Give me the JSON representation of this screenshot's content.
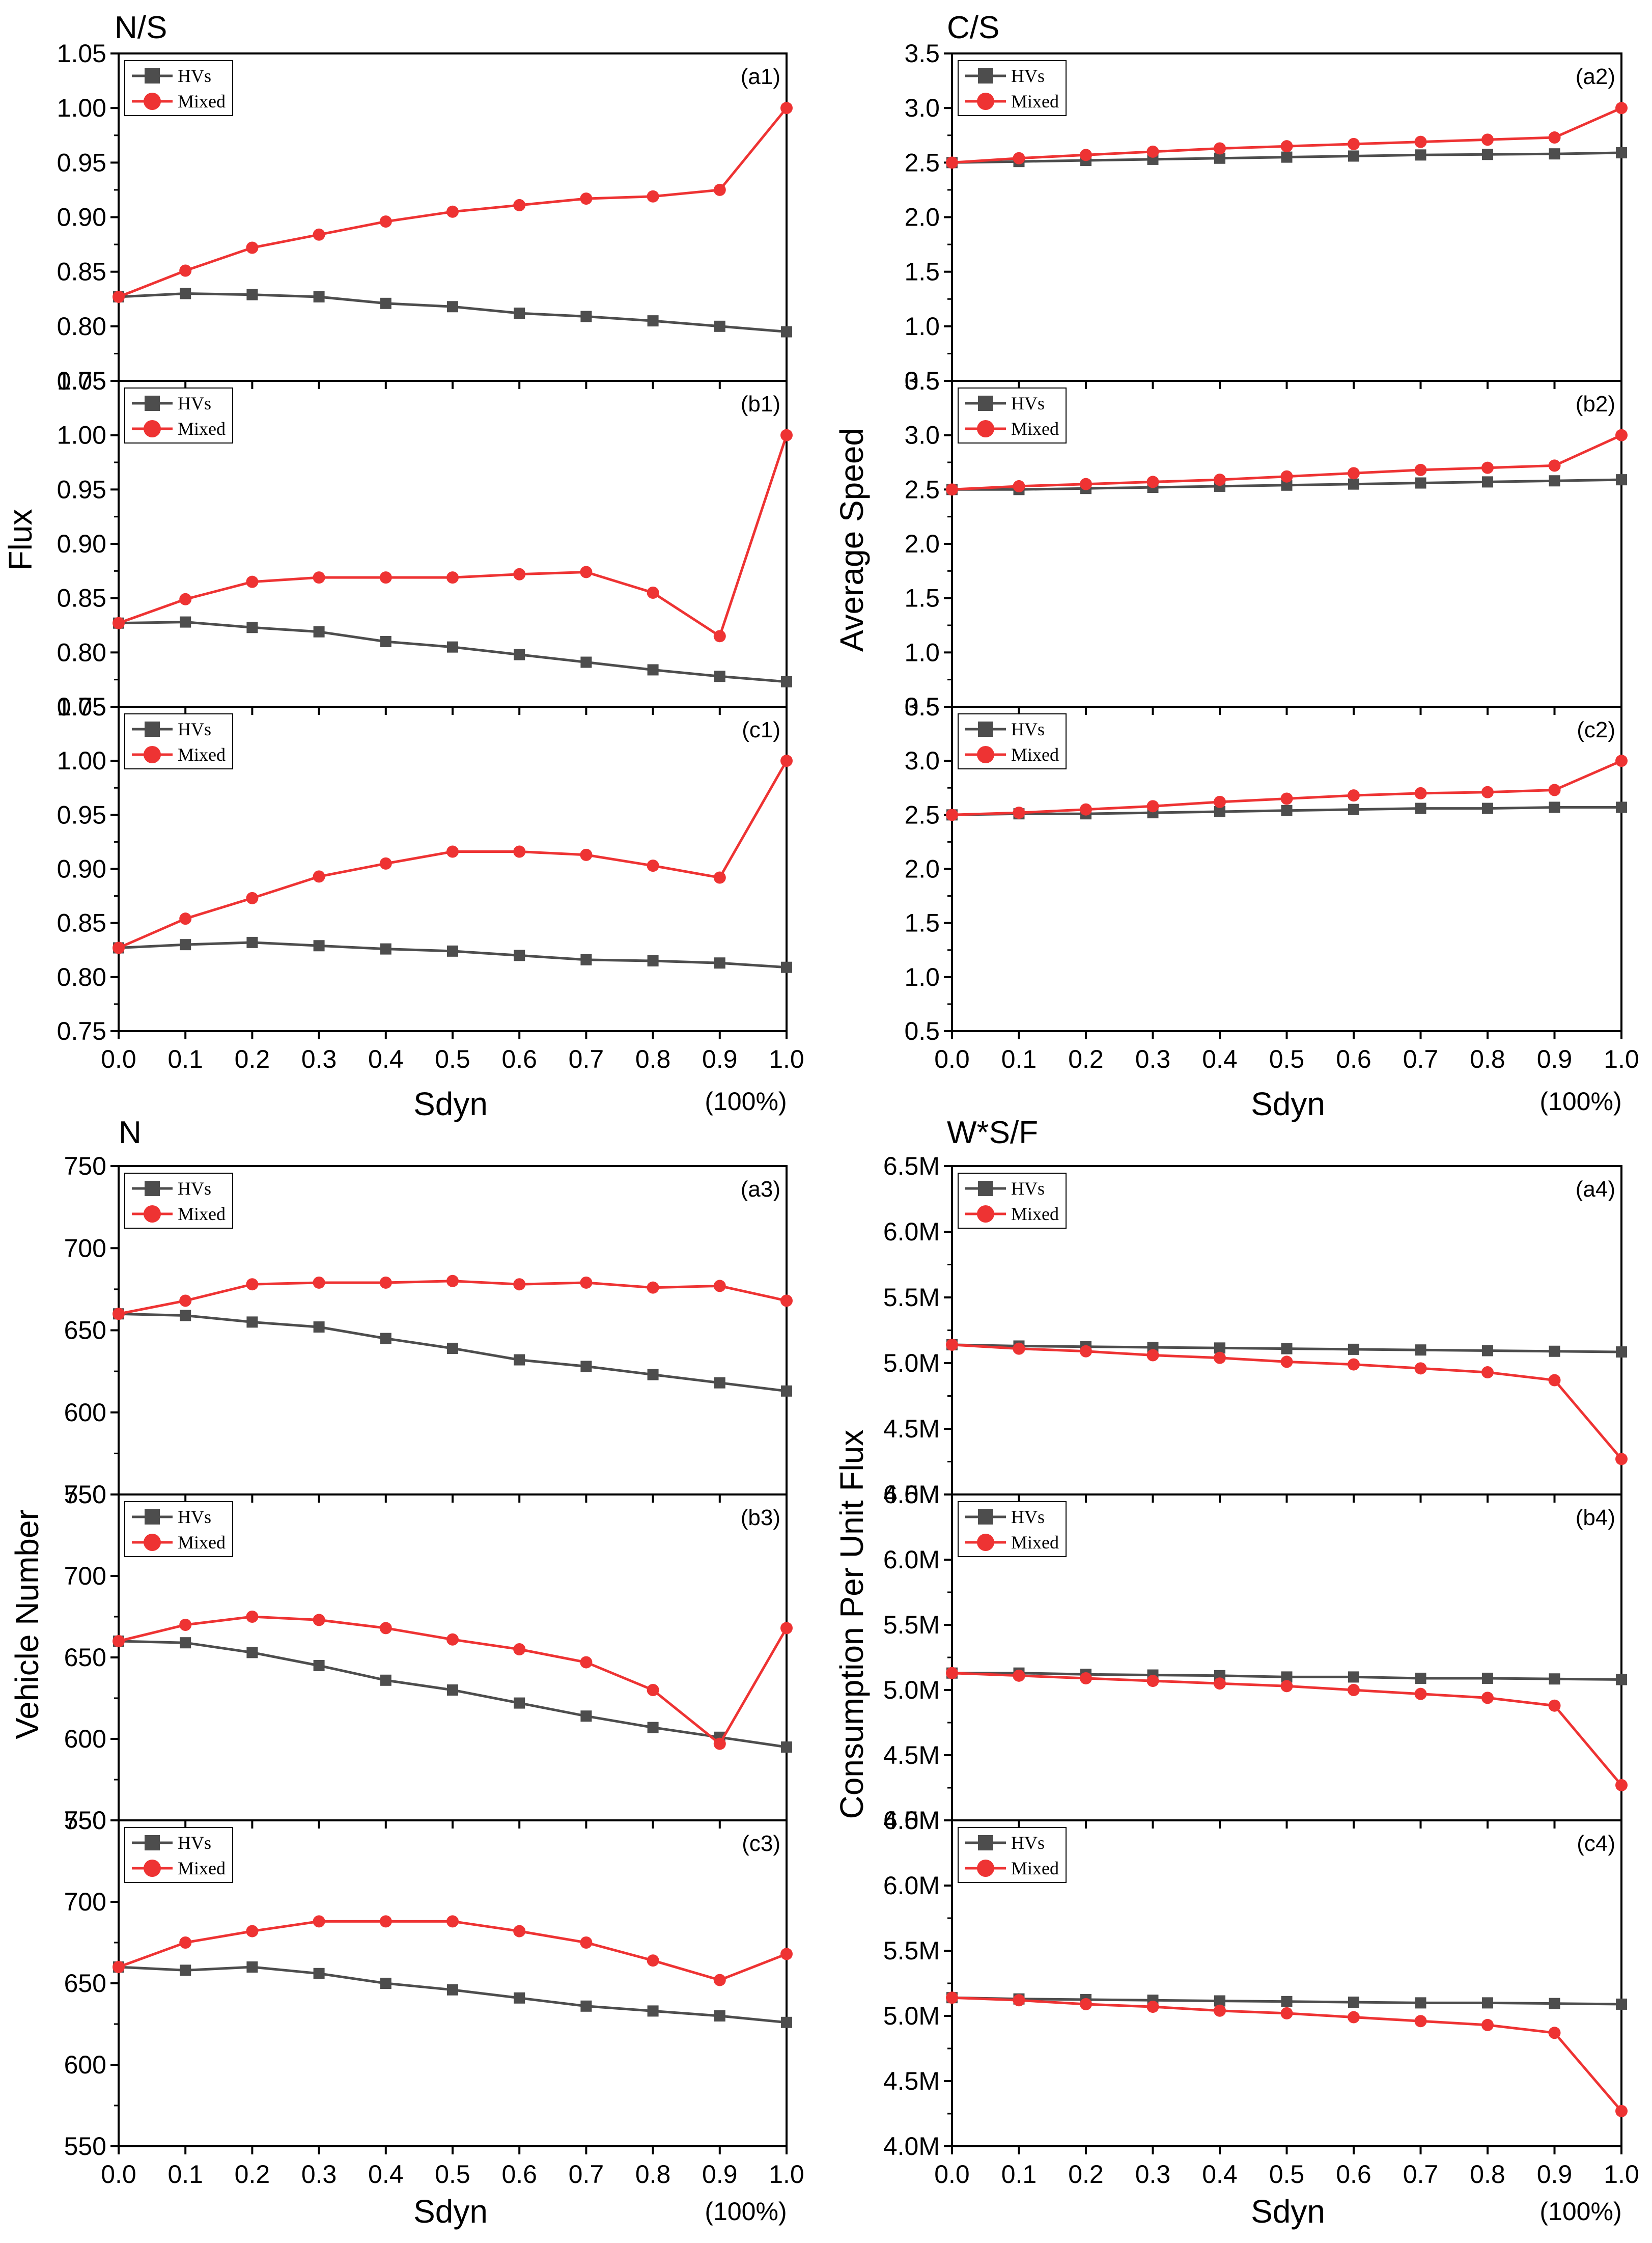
{
  "figure": {
    "section_titles": {
      "tl": "N/S",
      "tr": "C/S",
      "bl": "N",
      "br": "W*S/F"
    },
    "y_labels": {
      "tl": "Flux",
      "tr": "Average Speed",
      "bl": "Vehicle Number",
      "br": "Consumption Per Unit Flux"
    },
    "x_label": "Sdyn",
    "x_unit_note": "(100%)",
    "x_ticks": [
      "0.0",
      "0.1",
      "0.2",
      "0.3",
      "0.4",
      "0.5",
      "0.6",
      "0.7",
      "0.8",
      "0.9",
      "1.0"
    ],
    "legend": {
      "hvs": "HVs",
      "mixed": "Mixed"
    },
    "colors": {
      "hvs": "#4d4d4d",
      "mixed": "#ee3333",
      "axis": "#000000"
    }
  },
  "chart_data": [
    {
      "type": "line",
      "id": "a1",
      "panel_label": "(a1)",
      "x": [
        0.0,
        0.1,
        0.2,
        0.3,
        0.4,
        0.5,
        0.6,
        0.7,
        0.8,
        0.9,
        1.0
      ],
      "ylim": [
        0.75,
        1.05
      ],
      "yticks": [
        "0.75",
        "0.80",
        "0.85",
        "0.90",
        "0.95",
        "1.00",
        "1.05"
      ],
      "series": [
        {
          "name": "HVs",
          "values": [
            0.827,
            0.83,
            0.829,
            0.827,
            0.821,
            0.818,
            0.812,
            0.809,
            0.805,
            0.8,
            0.795
          ]
        },
        {
          "name": "Mixed",
          "values": [
            0.827,
            0.851,
            0.872,
            0.884,
            0.896,
            0.905,
            0.911,
            0.917,
            0.919,
            0.925,
            1.0
          ]
        }
      ]
    },
    {
      "type": "line",
      "id": "b1",
      "panel_label": "(b1)",
      "x": [
        0.0,
        0.1,
        0.2,
        0.3,
        0.4,
        0.5,
        0.6,
        0.7,
        0.8,
        0.9,
        1.0
      ],
      "ylim": [
        0.75,
        1.05
      ],
      "yticks": [
        "0.75",
        "0.80",
        "0.85",
        "0.90",
        "0.95",
        "1.00",
        "1.05"
      ],
      "series": [
        {
          "name": "HVs",
          "values": [
            0.827,
            0.828,
            0.823,
            0.819,
            0.81,
            0.805,
            0.798,
            0.791,
            0.784,
            0.778,
            0.773
          ]
        },
        {
          "name": "Mixed",
          "values": [
            0.827,
            0.849,
            0.865,
            0.869,
            0.869,
            0.869,
            0.872,
            0.874,
            0.855,
            0.815,
            1.0
          ]
        }
      ]
    },
    {
      "type": "line",
      "id": "c1",
      "panel_label": "(c1)",
      "x": [
        0.0,
        0.1,
        0.2,
        0.3,
        0.4,
        0.5,
        0.6,
        0.7,
        0.8,
        0.9,
        1.0
      ],
      "ylim": [
        0.75,
        1.05
      ],
      "yticks": [
        "0.75",
        "0.80",
        "0.85",
        "0.90",
        "0.95",
        "1.00",
        "1.05"
      ],
      "series": [
        {
          "name": "HVs",
          "values": [
            0.827,
            0.83,
            0.832,
            0.829,
            0.826,
            0.824,
            0.82,
            0.816,
            0.815,
            0.813,
            0.809
          ]
        },
        {
          "name": "Mixed",
          "values": [
            0.827,
            0.854,
            0.873,
            0.893,
            0.905,
            0.916,
            0.916,
            0.913,
            0.903,
            0.892,
            1.0
          ]
        }
      ]
    },
    {
      "type": "line",
      "id": "a2",
      "panel_label": "(a2)",
      "x": [
        0.0,
        0.1,
        0.2,
        0.3,
        0.4,
        0.5,
        0.6,
        0.7,
        0.8,
        0.9,
        1.0
      ],
      "ylim": [
        0.5,
        3.5
      ],
      "yticks": [
        "0.5",
        "1.0",
        "1.5",
        "2.0",
        "2.5",
        "3.0",
        "3.5"
      ],
      "series": [
        {
          "name": "HVs",
          "values": [
            2.5,
            2.51,
            2.52,
            2.53,
            2.54,
            2.55,
            2.56,
            2.57,
            2.575,
            2.58,
            2.59
          ]
        },
        {
          "name": "Mixed",
          "values": [
            2.5,
            2.54,
            2.57,
            2.6,
            2.63,
            2.65,
            2.67,
            2.69,
            2.71,
            2.73,
            3.0
          ]
        }
      ]
    },
    {
      "type": "line",
      "id": "b2",
      "panel_label": "(b2)",
      "x": [
        0.0,
        0.1,
        0.2,
        0.3,
        0.4,
        0.5,
        0.6,
        0.7,
        0.8,
        0.9,
        1.0
      ],
      "ylim": [
        0.5,
        3.5
      ],
      "yticks": [
        "0.5",
        "1.0",
        "1.5",
        "2.0",
        "2.5",
        "3.0",
        "3.5"
      ],
      "series": [
        {
          "name": "HVs",
          "values": [
            2.5,
            2.5,
            2.51,
            2.52,
            2.53,
            2.54,
            2.55,
            2.56,
            2.57,
            2.58,
            2.59
          ]
        },
        {
          "name": "Mixed",
          "values": [
            2.5,
            2.53,
            2.55,
            2.57,
            2.59,
            2.62,
            2.65,
            2.68,
            2.7,
            2.72,
            3.0
          ]
        }
      ]
    },
    {
      "type": "line",
      "id": "c2",
      "panel_label": "(c2)",
      "x": [
        0.0,
        0.1,
        0.2,
        0.3,
        0.4,
        0.5,
        0.6,
        0.7,
        0.8,
        0.9,
        1.0
      ],
      "ylim": [
        0.5,
        3.5
      ],
      "yticks": [
        "0.5",
        "1.0",
        "1.5",
        "2.0",
        "2.5",
        "3.0",
        "3.5"
      ],
      "series": [
        {
          "name": "HVs",
          "values": [
            2.5,
            2.51,
            2.51,
            2.52,
            2.53,
            2.54,
            2.55,
            2.56,
            2.56,
            2.57,
            2.57
          ]
        },
        {
          "name": "Mixed",
          "values": [
            2.5,
            2.52,
            2.55,
            2.58,
            2.62,
            2.65,
            2.68,
            2.7,
            2.71,
            2.73,
            3.0
          ]
        }
      ]
    },
    {
      "type": "line",
      "id": "a3",
      "panel_label": "(a3)",
      "x": [
        0.0,
        0.1,
        0.2,
        0.3,
        0.4,
        0.5,
        0.6,
        0.7,
        0.8,
        0.9,
        1.0
      ],
      "ylim": [
        550,
        750
      ],
      "yticks": [
        "550",
        "600",
        "650",
        "700",
        "750"
      ],
      "series": [
        {
          "name": "HVs",
          "values": [
            660,
            659,
            655,
            652,
            645,
            639,
            632,
            628,
            623,
            618,
            613
          ]
        },
        {
          "name": "Mixed",
          "values": [
            660,
            668,
            678,
            679,
            679,
            680,
            678,
            679,
            676,
            677,
            668
          ]
        }
      ]
    },
    {
      "type": "line",
      "id": "b3",
      "panel_label": "(b3)",
      "x": [
        0.0,
        0.1,
        0.2,
        0.3,
        0.4,
        0.5,
        0.6,
        0.7,
        0.8,
        0.9,
        1.0
      ],
      "ylim": [
        550,
        750
      ],
      "yticks": [
        "550",
        "600",
        "650",
        "700",
        "750"
      ],
      "series": [
        {
          "name": "HVs",
          "values": [
            660,
            659,
            653,
            645,
            636,
            630,
            622,
            614,
            607,
            601,
            595
          ]
        },
        {
          "name": "Mixed",
          "values": [
            660,
            670,
            675,
            673,
            668,
            661,
            655,
            647,
            630,
            597,
            668
          ]
        }
      ]
    },
    {
      "type": "line",
      "id": "c3",
      "panel_label": "(c3)",
      "x": [
        0.0,
        0.1,
        0.2,
        0.3,
        0.4,
        0.5,
        0.6,
        0.7,
        0.8,
        0.9,
        1.0
      ],
      "ylim": [
        550,
        750
      ],
      "yticks": [
        "550",
        "600",
        "650",
        "700",
        "750"
      ],
      "series": [
        {
          "name": "HVs",
          "values": [
            660,
            658,
            660,
            656,
            650,
            646,
            641,
            636,
            633,
            630,
            626
          ]
        },
        {
          "name": "Mixed",
          "values": [
            660,
            675,
            682,
            688,
            688,
            688,
            682,
            675,
            664,
            652,
            668
          ]
        }
      ]
    },
    {
      "type": "line",
      "id": "a4",
      "panel_label": "(a4)",
      "x": [
        0.0,
        0.1,
        0.2,
        0.3,
        0.4,
        0.5,
        0.6,
        0.7,
        0.8,
        0.9,
        1.0
      ],
      "ylim": [
        4.0,
        6.5
      ],
      "y_unit": "M",
      "yticks": [
        "4.0M",
        "4.5M",
        "5.0M",
        "5.5M",
        "6.0M",
        "6.5M"
      ],
      "series": [
        {
          "name": "HVs",
          "values": [
            5.14,
            5.13,
            5.125,
            5.12,
            5.115,
            5.11,
            5.105,
            5.1,
            5.095,
            5.09,
            5.085
          ]
        },
        {
          "name": "Mixed",
          "values": [
            5.14,
            5.11,
            5.09,
            5.06,
            5.04,
            5.01,
            4.99,
            4.96,
            4.93,
            4.87,
            4.27
          ]
        }
      ]
    },
    {
      "type": "line",
      "id": "b4",
      "panel_label": "(b4)",
      "x": [
        0.0,
        0.1,
        0.2,
        0.3,
        0.4,
        0.5,
        0.6,
        0.7,
        0.8,
        0.9,
        1.0
      ],
      "ylim": [
        4.0,
        6.5
      ],
      "y_unit": "M",
      "yticks": [
        "4.0M",
        "4.5M",
        "5.0M",
        "5.5M",
        "6.0M",
        "6.5M"
      ],
      "series": [
        {
          "name": "HVs",
          "values": [
            5.13,
            5.13,
            5.12,
            5.115,
            5.11,
            5.1,
            5.1,
            5.09,
            5.09,
            5.085,
            5.08
          ]
        },
        {
          "name": "Mixed",
          "values": [
            5.13,
            5.11,
            5.09,
            5.07,
            5.05,
            5.03,
            5.0,
            4.97,
            4.94,
            4.88,
            4.27
          ]
        }
      ]
    },
    {
      "type": "line",
      "id": "c4",
      "panel_label": "(c4)",
      "x": [
        0.0,
        0.1,
        0.2,
        0.3,
        0.4,
        0.5,
        0.6,
        0.7,
        0.8,
        0.9,
        1.0
      ],
      "ylim": [
        4.0,
        6.5
      ],
      "y_unit": "M",
      "yticks": [
        "4.0M",
        "4.5M",
        "5.0M",
        "5.5M",
        "6.0M",
        "6.5M"
      ],
      "series": [
        {
          "name": "HVs",
          "values": [
            5.14,
            5.13,
            5.125,
            5.12,
            5.115,
            5.11,
            5.105,
            5.1,
            5.1,
            5.095,
            5.09
          ]
        },
        {
          "name": "Mixed",
          "values": [
            5.14,
            5.12,
            5.09,
            5.07,
            5.04,
            5.02,
            4.99,
            4.96,
            4.93,
            4.87,
            4.27
          ]
        }
      ]
    }
  ]
}
